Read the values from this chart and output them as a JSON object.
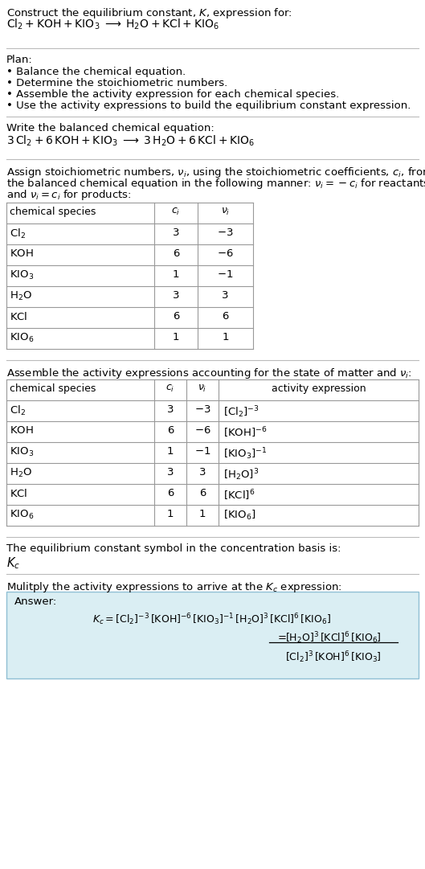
{
  "title_line1": "Construct the equilibrium constant, $K$, expression for:",
  "title_line2": "$\\mathrm{Cl_2 + KOH + KIO_3 \\;\\longrightarrow\\; H_2O + KCl + KIO_6}$",
  "plan_header": "Plan:",
  "plan_bullets": [
    "• Balance the chemical equation.",
    "• Determine the stoichiometric numbers.",
    "• Assemble the activity expression for each chemical species.",
    "• Use the activity expressions to build the equilibrium constant expression."
  ],
  "balanced_header": "Write the balanced chemical equation:",
  "balanced_eq": "$\\mathrm{3\\,Cl_2 + 6\\,KOH + KIO_3 \\;\\longrightarrow\\; 3\\,H_2O + 6\\,KCl + KIO_6}$",
  "stoich_header1": "Assign stoichiometric numbers, $\\nu_i$, using the stoichiometric coefficients, $c_i$, from",
  "stoich_header2": "the balanced chemical equation in the following manner: $\\nu_i = -c_i$ for reactants",
  "stoich_header3": "and $\\nu_i = c_i$ for products:",
  "table1_cols": [
    "chemical species",
    "$c_i$",
    "$\\nu_i$"
  ],
  "table1_species": [
    "$\\mathrm{Cl_2}$",
    "$\\mathrm{KOH}$",
    "$\\mathrm{KIO_3}$",
    "$\\mathrm{H_2O}$",
    "$\\mathrm{KCl}$",
    "$\\mathrm{KIO_6}$"
  ],
  "table1_ci": [
    "3",
    "6",
    "1",
    "3",
    "6",
    "1"
  ],
  "table1_vi": [
    "$-3$",
    "$-6$",
    "$-1$",
    "3",
    "6",
    "1"
  ],
  "activity_header": "Assemble the activity expressions accounting for the state of matter and $\\nu_i$:",
  "table2_cols": [
    "chemical species",
    "$c_i$",
    "$\\nu_i$",
    "activity expression"
  ],
  "table2_species": [
    "$\\mathrm{Cl_2}$",
    "$\\mathrm{KOH}$",
    "$\\mathrm{KIO_3}$",
    "$\\mathrm{H_2O}$",
    "$\\mathrm{KCl}$",
    "$\\mathrm{KIO_6}$"
  ],
  "table2_ci": [
    "3",
    "6",
    "1",
    "3",
    "6",
    "1"
  ],
  "table2_vi": [
    "$-3$",
    "$-6$",
    "$-1$",
    "3",
    "6",
    "1"
  ],
  "table2_act": [
    "$[\\mathrm{Cl_2}]^{-3}$",
    "$[\\mathrm{KOH}]^{-6}$",
    "$[\\mathrm{KIO_3}]^{-1}$",
    "$[\\mathrm{H_2O}]^3$",
    "$[\\mathrm{KCl}]^6$",
    "$[\\mathrm{KIO_6}]$"
  ],
  "kc_text": "The equilibrium constant symbol in the concentration basis is:",
  "kc_symbol": "$K_c$",
  "multiply_text": "Mulitply the activity expressions to arrive at the $K_c$ expression:",
  "answer_label": "Answer:",
  "kc_long": "$K_c = [\\mathrm{Cl_2}]^{-3}\\,[\\mathrm{KOH}]^{-6}\\,[\\mathrm{KIO_3}]^{-1}\\,[\\mathrm{H_2O}]^3\\,[\\mathrm{KCl}]^6\\,[\\mathrm{KIO_6}]$",
  "kc_eq": "$= $",
  "kc_frac_num": "$[\\mathrm{H_2O}]^3\\,[\\mathrm{KCl}]^6\\,[\\mathrm{KIO_6}]$",
  "kc_frac_den": "$[\\mathrm{Cl_2}]^3\\,[\\mathrm{KOH}]^6\\,[\\mathrm{KIO_3}]$",
  "bg_color": "#ffffff",
  "text_color": "#000000",
  "table_border_color": "#999999",
  "answer_bg_color": "#daeef3",
  "answer_border_color": "#8fbfd4",
  "hline_color": "#bbbbbb"
}
